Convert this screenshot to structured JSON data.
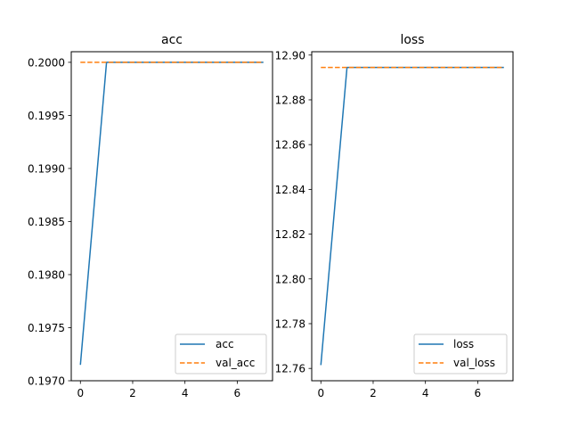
{
  "chart_data": [
    {
      "type": "line",
      "title": "acc",
      "xlabel": "",
      "ylabel": "",
      "xlim": [
        -0.35,
        7.35
      ],
      "ylim": [
        0.197,
        0.2001
      ],
      "xticks": [
        0,
        2,
        4,
        6
      ],
      "yticks": [
        0.197,
        0.1975,
        0.198,
        0.1985,
        0.199,
        0.1995,
        0.2
      ],
      "ytick_labels": [
        "0.1970",
        "0.1975",
        "0.1980",
        "0.1985",
        "0.1990",
        "0.1995",
        "0.2000"
      ],
      "legend_position": "lower-right",
      "grid": false,
      "series": [
        {
          "name": "acc",
          "style": "solid",
          "color": "#1f77b4",
          "x": [
            0,
            1,
            2,
            3,
            4,
            5,
            6,
            7
          ],
          "values": [
            0.19715,
            0.2,
            0.2,
            0.2,
            0.2,
            0.2,
            0.2,
            0.2
          ]
        },
        {
          "name": "val_acc",
          "style": "dashed",
          "color": "#ff7f0e",
          "x": [
            0,
            1,
            2,
            3,
            4,
            5,
            6,
            7
          ],
          "values": [
            0.2,
            0.2,
            0.2,
            0.2,
            0.2,
            0.2,
            0.2,
            0.2
          ]
        }
      ]
    },
    {
      "type": "line",
      "title": "loss",
      "xlabel": "",
      "ylabel": "",
      "xlim": [
        -0.35,
        7.35
      ],
      "ylim": [
        12.7545,
        12.9015
      ],
      "xticks": [
        0,
        2,
        4,
        6
      ],
      "yticks": [
        12.76,
        12.78,
        12.8,
        12.82,
        12.84,
        12.86,
        12.88,
        12.9
      ],
      "ytick_labels": [
        "12.76",
        "12.78",
        "12.80",
        "12.82",
        "12.84",
        "12.86",
        "12.88",
        "12.90"
      ],
      "legend_position": "lower-right",
      "grid": false,
      "series": [
        {
          "name": "loss",
          "style": "solid",
          "color": "#1f77b4",
          "x": [
            0,
            1,
            2,
            3,
            4,
            5,
            6,
            7
          ],
          "values": [
            12.7615,
            12.8945,
            12.8945,
            12.8945,
            12.8945,
            12.8945,
            12.8945,
            12.8945
          ]
        },
        {
          "name": "val_loss",
          "style": "dashed",
          "color": "#ff7f0e",
          "x": [
            0,
            1,
            2,
            3,
            4,
            5,
            6,
            7
          ],
          "values": [
            12.8945,
            12.8945,
            12.8945,
            12.8945,
            12.8945,
            12.8945,
            12.8945,
            12.8945
          ]
        }
      ]
    }
  ]
}
